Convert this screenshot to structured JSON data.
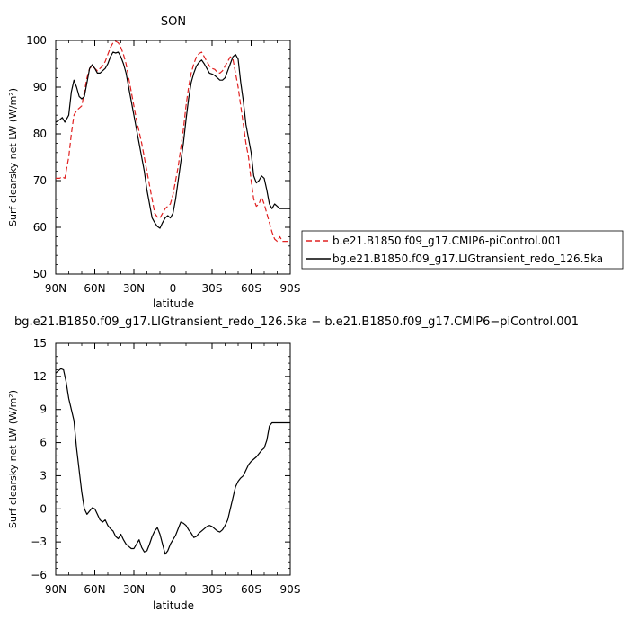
{
  "chart_data": [
    {
      "type": "line",
      "title": "SON",
      "xlabel": "latitude",
      "ylabel": "Surf clearsky net LW (W/m²)",
      "xlim": [
        90,
        -90
      ],
      "ylim": [
        50,
        100
      ],
      "x_ticks": [
        {
          "value": 90,
          "label": "90N"
        },
        {
          "value": 60,
          "label": "60N"
        },
        {
          "value": 30,
          "label": "30N"
        },
        {
          "value": 0,
          "label": "0"
        },
        {
          "value": -30,
          "label": "30S"
        },
        {
          "value": -60,
          "label": "60S"
        },
        {
          "value": -90,
          "label": "90S"
        }
      ],
      "y_ticks": [
        {
          "value": 50,
          "label": "50"
        },
        {
          "value": 60,
          "label": "60"
        },
        {
          "value": 70,
          "label": "70"
        },
        {
          "value": 80,
          "label": "80"
        },
        {
          "value": 90,
          "label": "90"
        },
        {
          "value": 100,
          "label": "100"
        }
      ],
      "series": [
        {
          "name": "b.e21.B1850.f09_g17.CMIP6-piControl.001",
          "color": "#e02020",
          "dash": "dashed",
          "x": [
            90,
            87,
            85,
            83,
            80,
            78,
            76,
            74,
            72,
            70,
            68,
            66,
            64,
            62,
            60,
            58,
            56,
            54,
            52,
            50,
            48,
            46,
            44,
            42,
            40,
            38,
            36,
            34,
            32,
            30,
            28,
            26,
            24,
            22,
            20,
            18,
            16,
            14,
            12,
            10,
            8,
            6,
            4,
            2,
            0,
            -2,
            -4,
            -6,
            -8,
            -10,
            -12,
            -14,
            -16,
            -18,
            -20,
            -22,
            -24,
            -26,
            -28,
            -30,
            -32,
            -34,
            -36,
            -38,
            -40,
            -42,
            -44,
            -46,
            -48,
            -50,
            -52,
            -54,
            -56,
            -58,
            -60,
            -62,
            -64,
            -66,
            -68,
            -70,
            -72,
            -74,
            -76,
            -78,
            -80,
            -82,
            -84,
            -86,
            -88,
            -90
          ],
          "y": [
            70.5,
            70.5,
            70.8,
            70.5,
            75.0,
            80.0,
            84.0,
            85.0,
            85.5,
            86.0,
            89.0,
            92.0,
            94.0,
            94.5,
            94.0,
            93.5,
            94.0,
            94.5,
            95.5,
            97.0,
            98.5,
            99.5,
            99.8,
            99.5,
            98.5,
            97.0,
            95.0,
            92.0,
            89.0,
            86.0,
            83.0,
            80.5,
            78.0,
            75.0,
            72.0,
            69.0,
            66.0,
            63.0,
            62.2,
            62.0,
            63.0,
            64.0,
            64.5,
            65.0,
            67.0,
            70.0,
            73.0,
            77.0,
            81.0,
            86.0,
            90.0,
            93.0,
            95.0,
            96.5,
            97.2,
            97.5,
            96.5,
            95.5,
            94.5,
            94.0,
            93.8,
            93.2,
            93.0,
            93.5,
            94.5,
            95.5,
            96.5,
            96.0,
            93.0,
            90.0,
            86.0,
            82.0,
            78.0,
            75.0,
            70.0,
            66.0,
            64.5,
            65.0,
            66.5,
            65.0,
            63.0,
            61.0,
            59.0,
            57.5,
            57.0,
            58.0,
            57.0,
            57.0,
            57.0,
            57.0
          ]
        },
        {
          "name": "bg.e21.B1850.f09_g17.LIGtransient_redo_126.5ka",
          "color": "#000000",
          "dash": "solid",
          "x": [
            90,
            87,
            85,
            83,
            80,
            78,
            76,
            74,
            72,
            70,
            68,
            66,
            64,
            62,
            60,
            58,
            56,
            54,
            52,
            50,
            48,
            46,
            44,
            42,
            40,
            38,
            36,
            34,
            32,
            30,
            28,
            26,
            24,
            22,
            20,
            18,
            16,
            14,
            12,
            10,
            8,
            6,
            4,
            2,
            0,
            -2,
            -4,
            -6,
            -8,
            -10,
            -12,
            -14,
            -16,
            -18,
            -20,
            -22,
            -24,
            -26,
            -28,
            -30,
            -32,
            -34,
            -36,
            -38,
            -40,
            -42,
            -44,
            -46,
            -48,
            -50,
            -52,
            -54,
            -56,
            -58,
            -60,
            -62,
            -64,
            -66,
            -68,
            -70,
            -72,
            -74,
            -76,
            -78,
            -80,
            -82,
            -84,
            -86,
            -88,
            -90
          ],
          "y": [
            82.5,
            83.0,
            83.5,
            82.5,
            84.0,
            89.0,
            91.5,
            90.0,
            88.0,
            87.5,
            88.0,
            91.0,
            94.0,
            94.8,
            94.0,
            93.0,
            93.0,
            93.5,
            94.0,
            95.0,
            96.5,
            97.5,
            97.3,
            97.5,
            96.5,
            95.0,
            93.0,
            90.0,
            87.0,
            84.0,
            81.0,
            78.0,
            75.0,
            72.0,
            68.0,
            65.0,
            62.0,
            61.0,
            60.2,
            59.8,
            61.0,
            62.0,
            62.5,
            62.0,
            63.0,
            66.0,
            70.0,
            74.0,
            78.0,
            83.0,
            87.5,
            91.0,
            93.0,
            94.5,
            95.3,
            95.8,
            95.0,
            94.0,
            93.0,
            92.8,
            92.5,
            92.0,
            91.5,
            91.5,
            92.0,
            93.5,
            95.0,
            96.5,
            97.0,
            96.0,
            91.0,
            87.0,
            82.0,
            79.0,
            76.0,
            71.0,
            69.5,
            70.0,
            71.0,
            70.5,
            68.0,
            65.0,
            64.0,
            65.0,
            64.5,
            64.0,
            64.0,
            64.0,
            64.0,
            64.0
          ]
        }
      ],
      "legend_position": "right"
    },
    {
      "type": "line",
      "title": "bg.e21.B1850.f09_g17.LIGtransient_redo_126.5ka − b.e21.B1850.f09_g17.CMIP6−piControl.001",
      "xlabel": "latitude",
      "ylabel": "Surf clearsky net LW (W/m²)",
      "xlim": [
        90,
        -90
      ],
      "ylim": [
        -6,
        15
      ],
      "x_ticks": [
        {
          "value": 90,
          "label": "90N"
        },
        {
          "value": 60,
          "label": "60N"
        },
        {
          "value": 30,
          "label": "30N"
        },
        {
          "value": 0,
          "label": "0"
        },
        {
          "value": -30,
          "label": "30S"
        },
        {
          "value": -60,
          "label": "60S"
        },
        {
          "value": -90,
          "label": "90S"
        }
      ],
      "y_ticks": [
        {
          "value": -6,
          "label": "−6"
        },
        {
          "value": -3,
          "label": "−3"
        },
        {
          "value": 0,
          "label": "0"
        },
        {
          "value": 3,
          "label": "3"
        },
        {
          "value": 6,
          "label": "6"
        },
        {
          "value": 9,
          "label": "9"
        },
        {
          "value": 12,
          "label": "12"
        },
        {
          "value": 15,
          "label": "15"
        }
      ],
      "series": [
        {
          "name": "",
          "color": "#000000",
          "dash": "solid",
          "x": [
            90,
            88,
            86,
            84,
            82,
            80,
            78,
            76,
            74,
            72,
            70,
            68,
            66,
            64,
            62,
            60,
            58,
            56,
            54,
            52,
            50,
            48,
            46,
            44,
            42,
            40,
            38,
            36,
            34,
            32,
            30,
            28,
            26,
            24,
            22,
            20,
            18,
            16,
            14,
            12,
            10,
            8,
            6,
            4,
            2,
            0,
            -2,
            -4,
            -6,
            -8,
            -10,
            -12,
            -14,
            -16,
            -18,
            -20,
            -22,
            -24,
            -26,
            -28,
            -30,
            -32,
            -34,
            -36,
            -38,
            -40,
            -42,
            -44,
            -46,
            -48,
            -50,
            -52,
            -54,
            -56,
            -58,
            -60,
            -62,
            -64,
            -66,
            -68,
            -70,
            -72,
            -74,
            -76,
            -78,
            -80,
            -82,
            -84,
            -86,
            -88,
            -90
          ],
          "y": [
            12.3,
            12.5,
            12.7,
            12.6,
            11.5,
            10.0,
            9.0,
            8.0,
            5.5,
            3.5,
            1.5,
            0.0,
            -0.5,
            -0.2,
            0.1,
            0.0,
            -0.5,
            -1.0,
            -1.2,
            -1.0,
            -1.5,
            -1.8,
            -2.0,
            -2.5,
            -2.7,
            -2.3,
            -2.8,
            -3.2,
            -3.4,
            -3.6,
            -3.6,
            -3.2,
            -2.8,
            -3.5,
            -3.9,
            -3.8,
            -3.2,
            -2.5,
            -2.0,
            -1.7,
            -2.3,
            -3.2,
            -4.1,
            -3.8,
            -3.2,
            -2.8,
            -2.4,
            -1.8,
            -1.2,
            -1.3,
            -1.5,
            -1.9,
            -2.2,
            -2.6,
            -2.5,
            -2.2,
            -2.0,
            -1.8,
            -1.6,
            -1.5,
            -1.6,
            -1.8,
            -2.0,
            -2.1,
            -1.9,
            -1.5,
            -1.0,
            0.0,
            1.0,
            2.0,
            2.5,
            2.8,
            3.0,
            3.5,
            4.0,
            4.3,
            4.5,
            4.7,
            5.0,
            5.3,
            5.5,
            6.2,
            7.5,
            7.8,
            7.8,
            7.8,
            7.8,
            7.8,
            7.8,
            7.8,
            7.8
          ]
        }
      ]
    }
  ]
}
